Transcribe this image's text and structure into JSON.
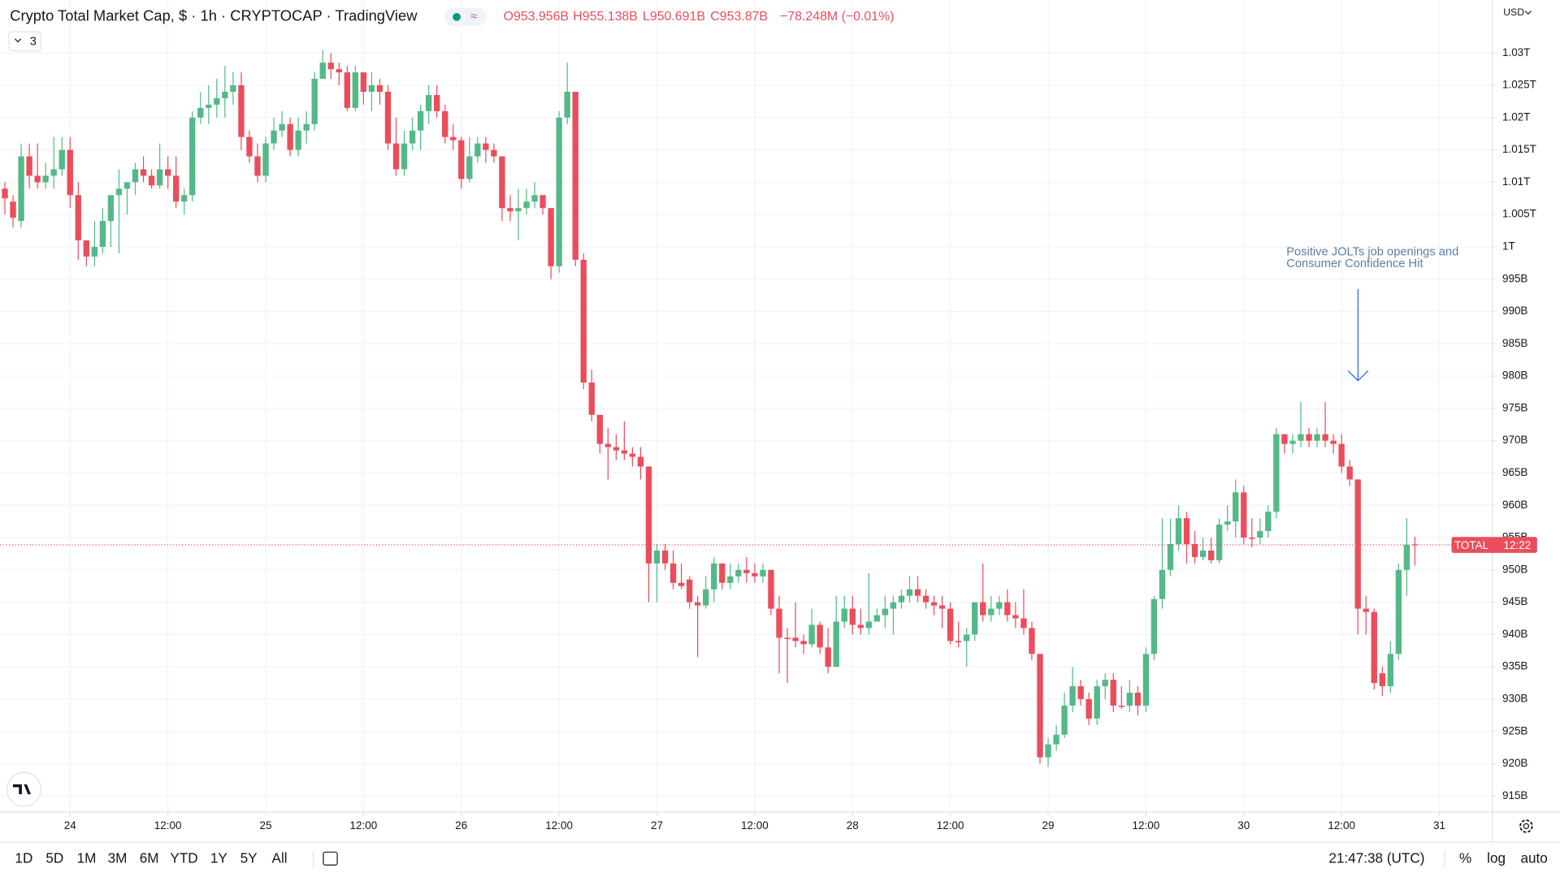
{
  "header": {
    "title": "Crypto Total Market Cap, $ · 1h · CRYPTOCAP · TradingView",
    "ohlc": [
      "O953.956B",
      "H955.138B",
      "L950.691B",
      "C953.87B",
      "−78.248M (−0.01%)"
    ],
    "indicator_count": "3",
    "currency": "USD"
  },
  "toolbar": {
    "ranges": [
      "1D",
      "5D",
      "1M",
      "3M",
      "6M",
      "YTD",
      "1Y",
      "5Y",
      "All"
    ],
    "clock": "21:47:38 (UTC)",
    "options": [
      "%",
      "log",
      "auto"
    ]
  },
  "chart_data": {
    "type": "candlestick",
    "up_color": "#53b987",
    "down_color": "#eb4d5c",
    "grid": true,
    "annotation": [
      "Positive JOLTs job openings and",
      "Consumer Confidence Hit"
    ],
    "last_price_label": {
      "name": "TOTAL",
      "countdown": "12:22"
    },
    "open": [
      1009,
      1007,
      1004,
      1014,
      1011,
      1010,
      1011,
      1012,
      1015,
      1008,
      1001,
      998.5,
      1000,
      1004,
      1008,
      1009,
      1010,
      1012,
      1011,
      1009.5,
      1012,
      1011,
      1007,
      1008,
      1020,
      1021.5,
      1022,
      1023,
      1024,
      1025,
      1017,
      1014,
      1011,
      1016,
      1018,
      1019,
      1015,
      1018,
      1019,
      1026,
      1028.5,
      1027.5,
      1027,
      1021.5,
      1027,
      1024,
      1025,
      1024,
      1016,
      1012,
      1016,
      1018,
      1021,
      1023.5,
      1021,
      1017,
      1016.5,
      1010.5,
      1014,
      1016,
      1015,
      1014,
      1006,
      1005.5,
      1006,
      1007,
      1008,
      1006,
      997,
      1020,
      1024,
      998,
      979,
      974,
      969.5,
      969,
      968.5,
      968,
      967.5,
      966,
      951,
      953,
      951,
      948,
      948.5,
      945,
      944.5,
      947,
      951,
      948,
      949,
      950,
      949.5,
      949,
      950,
      944,
      939.5,
      939.5,
      939,
      938.5,
      941.5,
      938,
      935,
      942,
      944,
      941.5,
      941,
      942,
      943,
      944,
      945,
      946,
      947,
      946,
      945,
      944.5,
      944,
      939,
      939,
      940,
      945,
      943,
      944,
      945,
      943,
      942.5,
      941,
      937,
      921,
      923,
      924.5,
      929,
      932,
      930,
      927,
      932,
      933,
      929,
      929,
      931,
      929,
      937,
      945.5,
      950,
      954,
      958,
      954,
      952,
      953,
      951.5,
      957,
      957.5,
      962,
      955,
      955,
      956,
      959,
      971,
      969.5,
      970,
      971,
      970,
      971,
      970,
      969.5,
      966,
      964,
      944,
      943.5,
      934,
      932,
      937,
      950,
      953.956
    ],
    "high": [
      1010,
      1008,
      1016,
      1016,
      1016,
      1013,
      1017,
      1017,
      1017,
      1010,
      1001,
      1004,
      1006,
      1008,
      1012,
      1010,
      1013,
      1014,
      1012,
      1016,
      1014,
      1014,
      1009,
      1021,
      1024,
      1025,
      1026,
      1028,
      1027,
      1027,
      1018,
      1016,
      1017,
      1020,
      1021,
      1020,
      1020,
      1021,
      1027,
      1030.5,
      1030,
      1028.5,
      1028,
      1028,
      1027,
      1027,
      1026,
      1025,
      1020,
      1018,
      1020,
      1022,
      1025,
      1025,
      1022,
      1019,
      1017,
      1017,
      1017,
      1017,
      1016,
      1014,
      1008,
      1009,
      1009,
      1010,
      1008,
      1006,
      1021,
      1028.5,
      1024,
      999,
      981,
      974,
      972,
      971,
      973,
      969,
      969,
      966,
      954,
      954,
      953,
      951,
      949,
      946,
      949,
      952,
      951,
      951,
      951,
      952,
      951,
      951,
      950,
      946,
      941,
      945,
      940,
      944,
      942,
      941,
      946,
      946,
      946,
      944,
      949.5,
      944,
      946,
      946,
      947,
      949,
      949,
      947,
      946,
      946,
      945,
      942,
      941,
      945,
      951,
      946,
      946,
      947,
      945,
      947,
      942,
      937,
      924,
      926,
      931,
      935,
      933,
      931,
      933,
      934,
      934,
      932,
      933,
      932,
      938,
      946,
      958,
      958,
      960,
      959,
      956,
      955,
      955,
      958,
      960,
      964,
      963,
      958,
      958,
      960,
      972,
      971,
      971,
      976,
      972,
      972,
      976,
      971,
      971,
      967,
      964,
      946,
      944,
      935,
      939,
      951,
      958,
      955.138
    ],
    "low": [
      1005,
      1003,
      1003,
      1009,
      1009,
      1009,
      1009,
      1011,
      1006,
      998,
      997,
      997,
      999,
      1000,
      999,
      1005,
      1008,
      1010,
      1009,
      1009,
      1009,
      1006,
      1005,
      1007,
      1019,
      1019,
      1020,
      1020,
      1022,
      1015,
      1013,
      1010,
      1010,
      1015,
      1017,
      1014,
      1014,
      1016,
      1018,
      1026,
      1026,
      1025,
      1021,
      1021,
      1022,
      1021,
      1022,
      1015,
      1011,
      1011,
      1015,
      1015,
      1019,
      1020,
      1016,
      1015,
      1009,
      1010,
      1013,
      1013,
      1013,
      1004,
      1004,
      1001,
      1005,
      1006,
      1005,
      995,
      996,
      1019,
      997,
      978,
      973,
      968,
      964,
      967,
      967,
      966,
      964,
      945,
      945,
      950,
      947,
      947,
      944,
      936.5,
      944,
      945,
      947,
      947,
      948,
      948,
      948,
      948,
      943,
      934,
      932.5,
      938,
      937,
      938,
      937,
      934,
      935,
      941,
      940,
      940,
      940,
      942,
      941,
      940,
      944,
      945,
      945,
      944,
      943,
      941,
      938.5,
      938,
      935,
      939,
      942,
      942,
      943,
      942,
      941,
      940,
      936,
      920,
      919.5,
      922,
      924,
      928,
      929,
      926,
      926,
      930,
      928,
      928.5,
      928,
      927.5,
      928,
      936,
      944,
      949,
      953,
      951,
      951,
      951.5,
      951,
      951,
      956,
      955,
      954,
      953.5,
      954,
      955,
      958,
      968,
      968,
      969,
      969,
      969,
      969,
      968,
      965,
      963,
      940,
      940,
      931.5,
      930.5,
      931,
      936,
      946,
      950.691
    ],
    "close": [
      1007.5,
      1004.5,
      1014,
      1011,
      1010,
      1011,
      1012,
      1015,
      1008,
      1001,
      998.5,
      1000,
      1004,
      1008,
      1009,
      1010,
      1012,
      1011,
      1009.5,
      1012,
      1011,
      1007,
      1008,
      1020,
      1021.5,
      1022,
      1023,
      1024,
      1025,
      1017,
      1014,
      1011,
      1016,
      1018,
      1019,
      1015,
      1018,
      1019,
      1026,
      1028.5,
      1027.5,
      1027,
      1021.5,
      1027,
      1024,
      1025,
      1024,
      1016,
      1012,
      1016,
      1018,
      1021,
      1023.5,
      1021,
      1017,
      1016.5,
      1010.5,
      1014,
      1016,
      1015,
      1014,
      1006,
      1005.5,
      1006,
      1007,
      1008,
      1006,
      997,
      1020,
      1024,
      998,
      979,
      974,
      969.5,
      969,
      968.5,
      968,
      967.5,
      966,
      951,
      953,
      951,
      948,
      947.5,
      945,
      944.5,
      947,
      951,
      948,
      949,
      950,
      949.5,
      949,
      950,
      944,
      939.5,
      939.3,
      939,
      938.5,
      941.5,
      938,
      935,
      942,
      944,
      941.5,
      941,
      942,
      943,
      944,
      945,
      946,
      947,
      946,
      945,
      944.5,
      944,
      939,
      938.8,
      940,
      945,
      943,
      944,
      945,
      943,
      942.5,
      941,
      937,
      921,
      923,
      924.5,
      929,
      932,
      930,
      927,
      932,
      933,
      929,
      928.8,
      931,
      929,
      937,
      945.5,
      950,
      954,
      958,
      954,
      952,
      953,
      951.5,
      957,
      957.5,
      962,
      955,
      954.8,
      956,
      959,
      971,
      969.5,
      970,
      971,
      970,
      971,
      970,
      969.5,
      966,
      964,
      944,
      943.5,
      932.5,
      932,
      937,
      950,
      953.9,
      953.87
    ],
    "xlim": [
      -0.6,
      182.5
    ],
    "xticks": [
      {
        "value": 8,
        "label": "24"
      },
      {
        "value": 20,
        "label": "12:00"
      },
      {
        "value": 32,
        "label": "25"
      },
      {
        "value": 44,
        "label": "12:00"
      },
      {
        "value": 56,
        "label": "26"
      },
      {
        "value": 68,
        "label": "12:00"
      },
      {
        "value": 80,
        "label": "27"
      },
      {
        "value": 92,
        "label": "12:00"
      },
      {
        "value": 104,
        "label": "28"
      },
      {
        "value": 116,
        "label": "12:00"
      },
      {
        "value": 128,
        "label": "29"
      },
      {
        "value": 140,
        "label": "12:00"
      },
      {
        "value": 152,
        "label": "30"
      },
      {
        "value": 164,
        "label": "12:00"
      },
      {
        "value": 176,
        "label": "31"
      }
    ],
    "ylim": [
      912.5,
      1038.2
    ],
    "yticks": [
      {
        "value": 915,
        "label": "915B"
      },
      {
        "value": 920,
        "label": "920B"
      },
      {
        "value": 925,
        "label": "925B"
      },
      {
        "value": 930,
        "label": "930B"
      },
      {
        "value": 935,
        "label": "935B"
      },
      {
        "value": 940,
        "label": "940B"
      },
      {
        "value": 945,
        "label": "945B"
      },
      {
        "value": 950,
        "label": "950B"
      },
      {
        "value": 955,
        "label": "955B"
      },
      {
        "value": 960,
        "label": "960B"
      },
      {
        "value": 965,
        "label": "965B"
      },
      {
        "value": 970,
        "label": "970B"
      },
      {
        "value": 975,
        "label": "975B"
      },
      {
        "value": 980,
        "label": "980B"
      },
      {
        "value": 985,
        "label": "985B"
      },
      {
        "value": 990,
        "label": "990B"
      },
      {
        "value": 995,
        "label": "995B"
      },
      {
        "value": 1000,
        "label": "1T"
      },
      {
        "value": 1005,
        "label": "1.005T"
      },
      {
        "value": 1010,
        "label": "1.01T"
      },
      {
        "value": 1015,
        "label": "1.015T"
      },
      {
        "value": 1020,
        "label": "1.02T"
      },
      {
        "value": 1025,
        "label": "1.025T"
      },
      {
        "value": 1030,
        "label": "1.03T"
      }
    ]
  }
}
